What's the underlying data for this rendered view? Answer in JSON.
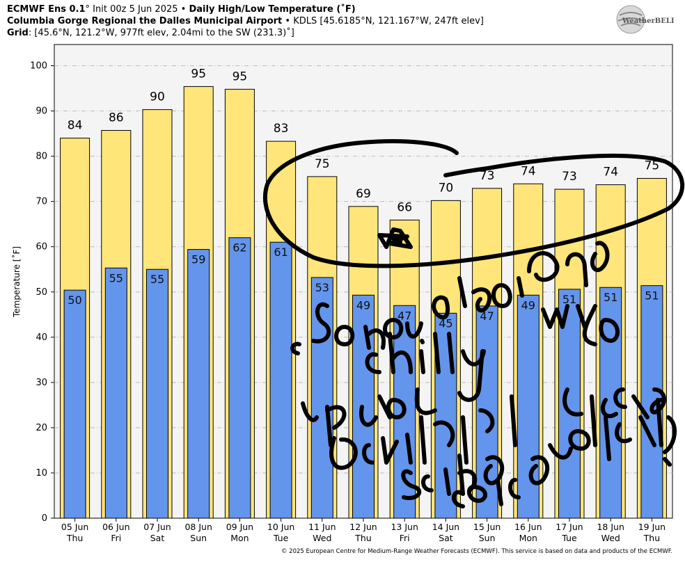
{
  "header": {
    "line1": {
      "model": "ECMWF Ens 0.1",
      "deg": "°",
      "init": "Init 00z 5 Jun 2025",
      "bullet": "•",
      "product": "Daily High/Low Temperature (˚F)"
    },
    "line2": {
      "station": "Columbia Gorge Regional the Dalles Municipal Airport",
      "bullet": "•",
      "details": "KDLS [45.6185°N, 121.167°W, 247ft elev]"
    },
    "line3": {
      "label": "Grid",
      "details": ": [45.6°N, 121.2°W, 977ft elev, 2.04mi to the SW (231.3)˚]"
    }
  },
  "logo": {
    "text": "WeatherBELL",
    "icon": "weatherbell-globe-icon"
  },
  "chart_data": {
    "type": "bar",
    "ylabel": "Temperature [˚F]",
    "ylim": [
      0,
      105
    ],
    "yticks": [
      0,
      10,
      20,
      30,
      40,
      50,
      60,
      70,
      80,
      90,
      100
    ],
    "grid": true,
    "categories": [
      {
        "date": "05 Jun",
        "day": "Thu"
      },
      {
        "date": "06 Jun",
        "day": "Fri"
      },
      {
        "date": "07 Jun",
        "day": "Sat"
      },
      {
        "date": "08 Jun",
        "day": "Sun"
      },
      {
        "date": "09 Jun",
        "day": "Mon"
      },
      {
        "date": "10 Jun",
        "day": "Tue"
      },
      {
        "date": "11 Jun",
        "day": "Wed"
      },
      {
        "date": "12 Jun",
        "day": "Thu"
      },
      {
        "date": "13 Jun",
        "day": "Fri"
      },
      {
        "date": "14 Jun",
        "day": "Sat"
      },
      {
        "date": "15 Jun",
        "day": "Sun"
      },
      {
        "date": "16 Jun",
        "day": "Mon"
      },
      {
        "date": "17 Jun",
        "day": "Tue"
      },
      {
        "date": "18 Jun",
        "day": "Wed"
      },
      {
        "date": "19 Jun",
        "day": "Thu"
      }
    ],
    "series": [
      {
        "name": "High",
        "color": "#ffe57a",
        "values": [
          84,
          85.7,
          90.3,
          95.4,
          94.8,
          83.3,
          75.5,
          68.9,
          65.9,
          70.2,
          72.9,
          73.9,
          72.7,
          73.7,
          75.1
        ],
        "labels": [
          "84",
          "86",
          "90",
          "95",
          "95",
          "83",
          "75",
          "69",
          "66",
          "70",
          "73",
          "74",
          "73",
          "74",
          "75"
        ]
      },
      {
        "name": "Low",
        "color": "#6495ed",
        "values": [
          50.4,
          55.3,
          55.0,
          59.4,
          62.0,
          61.0,
          53.2,
          49.3,
          47.0,
          45.3,
          46.9,
          49.3,
          50.6,
          51.0,
          51.4
        ],
        "labels": [
          "50",
          "55",
          "55",
          "59",
          "62",
          "61",
          "53",
          "49",
          "47",
          "45",
          "47",
          "49",
          "51",
          "51",
          "51"
        ]
      }
    ],
    "annotations": [
      "handwritten-circle-around-forecast",
      "handwritten-star"
    ],
    "handwritten_text": "Some chilly mornings and no 100 + days. Please let us see this forecast!"
  },
  "footer": {
    "copyright": "© 2025 European Centre for Medium-Range Weather Forecasts (ECMWF). This service is based on data and products of the ECMWF."
  }
}
